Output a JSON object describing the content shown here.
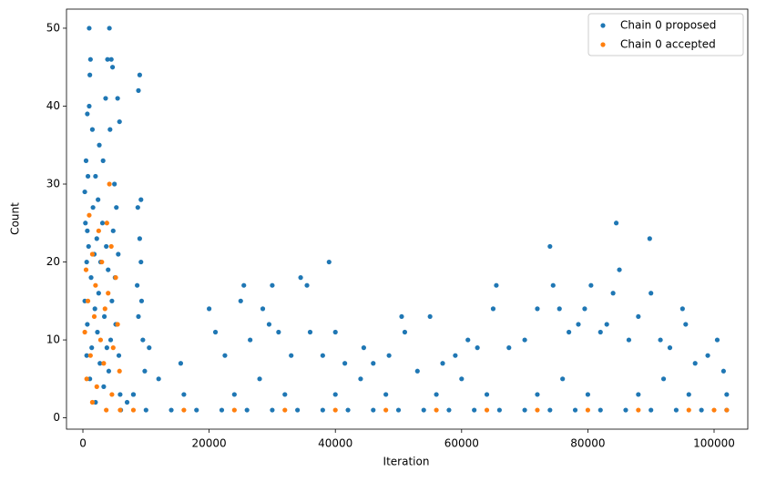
{
  "chart_data": {
    "type": "scatter",
    "xlabel": "Iteration",
    "ylabel": "Count",
    "xlim": [
      -2600,
      105340
    ],
    "ylim": [
      -1.45,
      52.45
    ],
    "xticks": [
      0,
      20000,
      40000,
      60000,
      80000,
      100000
    ],
    "yticks": [
      0,
      10,
      20,
      30,
      40,
      50
    ],
    "legend": "upper right",
    "series": [
      {
        "name": "Chain 0 proposed",
        "color": "#1f77b4",
        "x": [
          1000,
          4200,
          1200,
          3900,
          4500,
          1100,
          4700,
          9000,
          8800,
          3600,
          5500,
          1000,
          700,
          5800,
          1500,
          4300,
          2600,
          3200,
          500,
          800,
          2000,
          5000,
          300,
          2400,
          9200,
          1600,
          5300,
          8700,
          400,
          3100,
          700,
          4800,
          2200,
          9000,
          900,
          3700,
          1800,
          5600,
          600,
          2800,
          9200,
          4000,
          1300,
          5100,
          8600,
          2500,
          300,
          4600,
          9300,
          1900,
          3400,
          8800,
          700,
          5200,
          2300,
          4400,
          9500,
          1400,
          3800,
          10500,
          600,
          5700,
          2700,
          4100,
          9800,
          1100,
          3300,
          5900,
          8000,
          2000,
          7000,
          15500,
          20000,
          21000,
          22500,
          25500,
          25000,
          26500,
          28500,
          30000,
          29500,
          31000,
          33000,
          34500,
          35500,
          36000,
          38000,
          39000,
          40000,
          41500,
          44500,
          46000,
          48500,
          50500,
          51000,
          53000,
          55000,
          57000,
          59000,
          61000,
          62500,
          65500,
          65000,
          67500,
          70000,
          72000,
          74000,
          74500,
          75500,
          77000,
          78500,
          80500,
          79500,
          82000,
          83000,
          84500,
          85000,
          84000,
          86500,
          88000,
          89800,
          90000,
          91500,
          93000,
          95000,
          95500,
          97000,
          99000,
          100500,
          101500,
          102000,
          6000,
          10000,
          14000,
          18000,
          22000,
          26000,
          30000,
          34000,
          38000,
          42000,
          46000,
          50000,
          54000,
          58000,
          62000,
          66000,
          70000,
          74000,
          78000,
          82000,
          86000,
          90000,
          94000,
          98000,
          102000,
          8000,
          16000,
          24000,
          32000,
          40000,
          48000,
          56000,
          64000,
          72000,
          80000,
          88000,
          96000,
          12000,
          28000,
          44000,
          60000,
          76000,
          92000
        ],
        "values": [
          50,
          50,
          46,
          46,
          46,
          44,
          45,
          44,
          42,
          41,
          41,
          40,
          39,
          38,
          37,
          37,
          35,
          33,
          33,
          31,
          31,
          30,
          29,
          28,
          28,
          27,
          27,
          27,
          25,
          25,
          24,
          24,
          23,
          23,
          22,
          22,
          21,
          21,
          20,
          20,
          20,
          19,
          18,
          18,
          17,
          16,
          15,
          15,
          15,
          14,
          13,
          13,
          12,
          12,
          11,
          10,
          10,
          9,
          9,
          9,
          8,
          8,
          7,
          6,
          6,
          5,
          4,
          3,
          3,
          2,
          2,
          7,
          14,
          11,
          8,
          17,
          15,
          10,
          14,
          17,
          12,
          11,
          8,
          18,
          17,
          11,
          8,
          20,
          11,
          7,
          9,
          7,
          8,
          13,
          11,
          6,
          13,
          7,
          8,
          10,
          9,
          17,
          14,
          9,
          10,
          14,
          22,
          17,
          14,
          11,
          12,
          17,
          14,
          11,
          12,
          25,
          19,
          16,
          10,
          13,
          23,
          16,
          10,
          9,
          14,
          12,
          7,
          8,
          10,
          6,
          3,
          1,
          1,
          1,
          1,
          1,
          1,
          1,
          1,
          1,
          1,
          1,
          1,
          1,
          1,
          1,
          1,
          1,
          1,
          1,
          1,
          1,
          1,
          1,
          1,
          1,
          3,
          3,
          3,
          3,
          3,
          3,
          3,
          3,
          3,
          3,
          3,
          3,
          5,
          5,
          5,
          5,
          5,
          5
        ]
      },
      {
        "name": "Chain 0 accepted",
        "color": "#ff7f0e",
        "x": [
          4200,
          1000,
          3800,
          2500,
          4500,
          1500,
          3000,
          500,
          5200,
          2000,
          4000,
          800,
          3500,
          1800,
          5500,
          300,
          2800,
          4800,
          1200,
          3300,
          5800,
          600,
          2200,
          4600,
          1500,
          3700,
          5900,
          8000,
          16000,
          24000,
          32000,
          40000,
          48000,
          56000,
          64000,
          72000,
          80000,
          88000,
          96000,
          100000,
          102000
        ],
        "values": [
          30,
          26,
          25,
          24,
          22,
          21,
          20,
          19,
          18,
          17,
          16,
          15,
          14,
          13,
          12,
          11,
          10,
          9,
          8,
          7,
          6,
          5,
          4,
          3,
          2,
          1,
          1,
          1,
          1,
          1,
          1,
          1,
          1,
          1,
          1,
          1,
          1,
          1,
          1,
          1,
          1
        ]
      }
    ]
  }
}
